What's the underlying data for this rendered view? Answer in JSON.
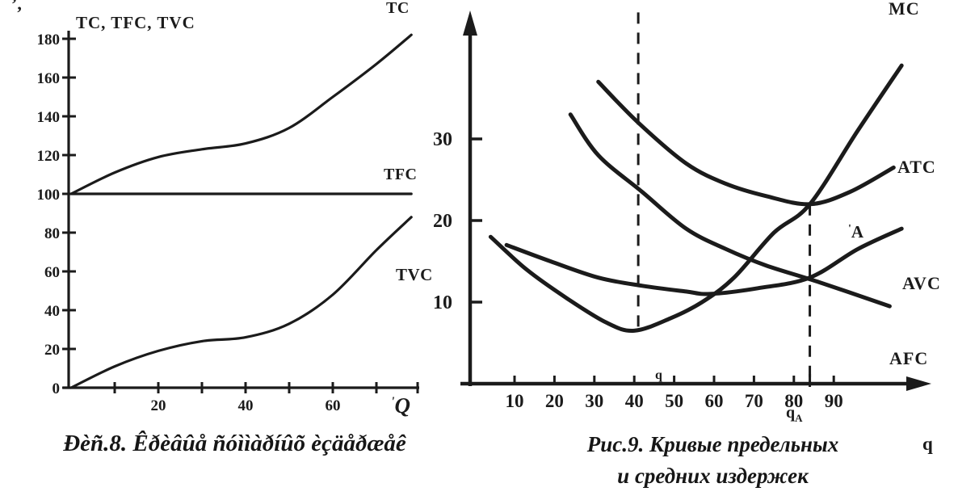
{
  "page": {
    "background": "#ffffff",
    "ink": "#1b1b1b"
  },
  "artifacts": {
    "top_left_marks": "’,",
    "left_q_prefix": "'",
    "point_label_tick": "'",
    "small_q_above_axis": "q"
  },
  "chart_data": [
    {
      "type": "line",
      "title": "Total cost curves (scanned figure)",
      "ylabel": "TC, TFC, TVC",
      "xlabel": "Q",
      "xlim": [
        0,
        80
      ],
      "ylim": [
        0,
        190
      ],
      "grid": false,
      "legend_position": "labels-on-curves",
      "x": [
        0,
        10,
        20,
        30,
        40,
        50,
        60,
        70,
        78
      ],
      "series": [
        {
          "name": "TC",
          "values": [
            100,
            111,
            119,
            123,
            126,
            134,
            150,
            167,
            182
          ]
        },
        {
          "name": "TFC",
          "values": [
            100,
            100,
            100,
            100,
            100,
            100,
            100,
            100,
            100
          ]
        },
        {
          "name": "TVC",
          "values": [
            0,
            11,
            19,
            24,
            26,
            33,
            48,
            71,
            88
          ]
        }
      ],
      "yticks": [
        0,
        20,
        40,
        60,
        80,
        100,
        120,
        140,
        160,
        180
      ],
      "xticks": [
        10,
        20,
        30,
        40,
        50,
        60,
        70
      ],
      "xtick_labels": [
        20,
        40,
        60
      ],
      "caption": "Ðèñ.8. Êðèâûå ñóììàðíûõ èçäåðæåê"
    },
    {
      "type": "line",
      "title": "Marginal and average cost curves (scanned figure)",
      "ylabel": "",
      "xlabel": "q",
      "xlim": [
        0,
        112
      ],
      "ylim": [
        0,
        46
      ],
      "grid": false,
      "legend_position": "labels-on-curves",
      "series": [
        {
          "name": "MC",
          "x": [
            4,
            13,
            23,
            33,
            40,
            49,
            57,
            65,
            75,
            84,
            96,
            107
          ],
          "values": [
            18,
            14,
            10.5,
            7.5,
            6.5,
            8,
            10,
            13,
            18.5,
            22,
            31,
            39
          ]
        },
        {
          "name": "ATC",
          "x": [
            31,
            41,
            53,
            63,
            73,
            84,
            94,
            105
          ],
          "values": [
            37,
            32,
            27,
            24.5,
            23,
            22,
            23.5,
            26.5
          ]
        },
        {
          "name": "AVC",
          "x": [
            8,
            19,
            31,
            42,
            53,
            59,
            71,
            84,
            96,
            107
          ],
          "values": [
            17,
            15,
            13,
            12,
            11.3,
            11,
            11.7,
            13,
            16.5,
            19
          ]
        },
        {
          "name": "AFC",
          "x": [
            24,
            31,
            42,
            53,
            63,
            73,
            86,
            104
          ],
          "values": [
            33,
            28,
            23.5,
            19,
            16.5,
            14.5,
            12.5,
            9.5
          ]
        }
      ],
      "yticks": [
        10,
        20,
        30
      ],
      "xticks": [
        10,
        20,
        30,
        40,
        50,
        60,
        70,
        80,
        90
      ],
      "annotations": {
        "dashed_lines": [
          {
            "q": 41,
            "v_top": 45.5,
            "v_bottom": 6.5
          },
          {
            "q": 84,
            "v_top": 22,
            "v_bottom": 0
          }
        ],
        "point_label": "A",
        "qa_label": {
          "base": "q",
          "sub": "A"
        },
        "small_q": "q"
      },
      "caption_line1": "Рис.9. Кривые предельных",
      "caption_line2": "и средних издержек"
    }
  ]
}
